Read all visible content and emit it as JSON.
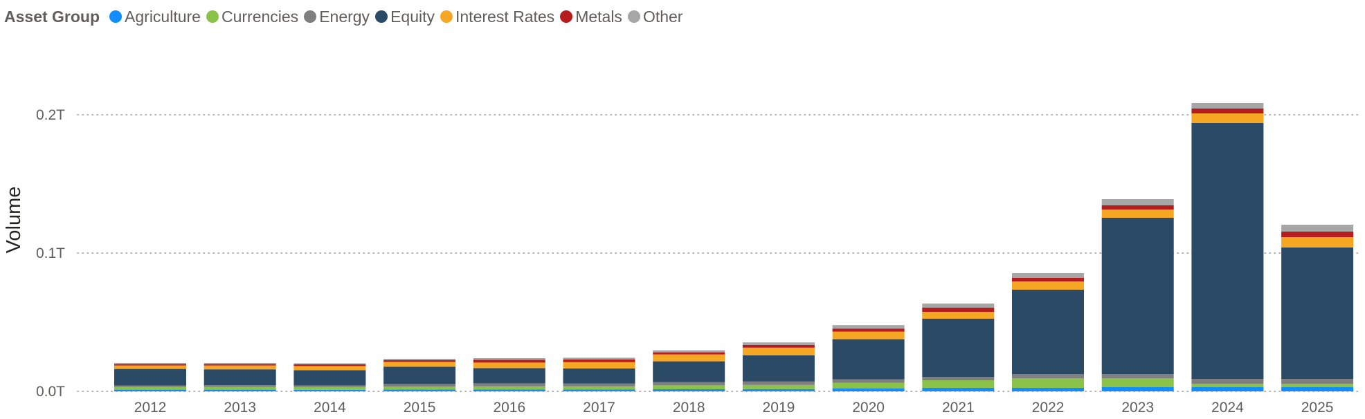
{
  "chart_data": {
    "type": "bar",
    "stacked": true,
    "title": "",
    "xlabel": "",
    "ylabel": "Volume",
    "ylim": [
      0,
      0.2
    ],
    "y_unit": "T",
    "y_ticks": [
      {
        "value": 0.0,
        "label": "0.0T"
      },
      {
        "value": 0.1,
        "label": "0.1T"
      },
      {
        "value": 0.2,
        "label": "0.2T"
      }
    ],
    "legend_title": "Asset Group",
    "legend_position": "top-left",
    "categories": [
      "2012",
      "2013",
      "2014",
      "2015",
      "2016",
      "2017",
      "2018",
      "2019",
      "2020",
      "2021",
      "2022",
      "2023",
      "2024",
      "2025"
    ],
    "series": [
      {
        "name": "Agriculture",
        "color": "#118DFF",
        "values": [
          0.0012,
          0.0012,
          0.0011,
          0.0013,
          0.0014,
          0.0014,
          0.0015,
          0.0016,
          0.0022,
          0.0025,
          0.0025,
          0.003,
          0.003,
          0.003
        ]
      },
      {
        "name": "Currencies",
        "color": "#8BC34A",
        "values": [
          0.002,
          0.002,
          0.002,
          0.0022,
          0.0022,
          0.0022,
          0.003,
          0.003,
          0.004,
          0.0055,
          0.007,
          0.0065,
          0.0025,
          0.0025
        ]
      },
      {
        "name": "Energy",
        "color": "#7F7F7F",
        "values": [
          0.001,
          0.0012,
          0.0012,
          0.0018,
          0.0022,
          0.002,
          0.0022,
          0.0025,
          0.0025,
          0.0025,
          0.003,
          0.003,
          0.0035,
          0.0035
        ]
      },
      {
        "name": "Equity",
        "color": "#2A4A65",
        "values": [
          0.012,
          0.0115,
          0.011,
          0.0125,
          0.011,
          0.011,
          0.015,
          0.019,
          0.029,
          0.042,
          0.061,
          0.113,
          0.185,
          0.095
        ]
      },
      {
        "name": "Interest Rates",
        "color": "#F5A623",
        "values": [
          0.0025,
          0.0028,
          0.003,
          0.0035,
          0.004,
          0.0045,
          0.005,
          0.0055,
          0.0055,
          0.005,
          0.006,
          0.006,
          0.007,
          0.0075
        ]
      },
      {
        "name": "Metals",
        "color": "#B71C1C",
        "values": [
          0.001,
          0.001,
          0.0012,
          0.0012,
          0.002,
          0.002,
          0.0015,
          0.002,
          0.0022,
          0.003,
          0.0025,
          0.003,
          0.0035,
          0.004
        ]
      },
      {
        "name": "Other",
        "color": "#A6A6A6",
        "values": [
          0.0008,
          0.0008,
          0.0008,
          0.001,
          0.0012,
          0.0012,
          0.0015,
          0.0018,
          0.0025,
          0.003,
          0.0035,
          0.0045,
          0.004,
          0.005
        ]
      }
    ]
  }
}
